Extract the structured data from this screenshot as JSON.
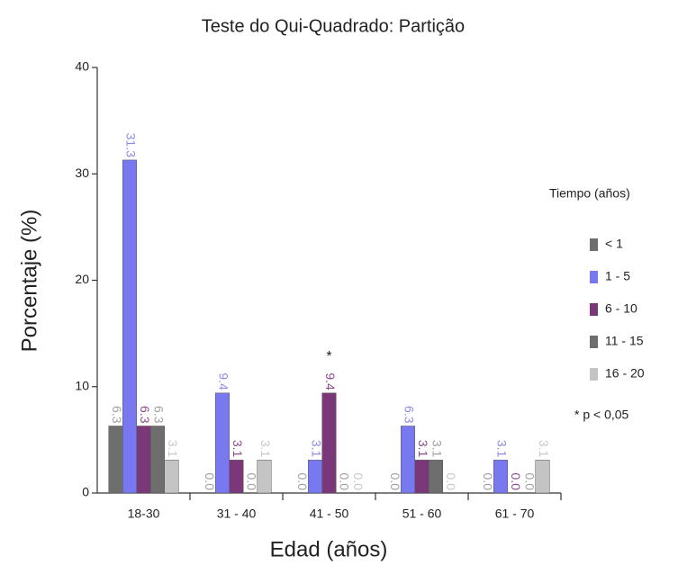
{
  "chart_data": {
    "type": "bar",
    "title": "Teste do Qui-Quadrado: Partição",
    "x_label": "Edad (años)",
    "y_label": "Porcentaje (%)",
    "legend_title": "Tiempo (años)",
    "note": "* p < 0,05",
    "annotations": [
      {
        "text": "*",
        "category": "41 - 50",
        "series": "6 - 10"
      }
    ],
    "categories": [
      "18-30",
      "31 - 40",
      "41 - 50",
      "51 - 60",
      "61 - 70"
    ],
    "ylim": [
      0,
      40
    ],
    "yticks": [
      0,
      10,
      20,
      30,
      40
    ],
    "legend": "right",
    "series": [
      {
        "name": "< 1",
        "color": "#6e6e6e",
        "label_color": "#a0a0a0",
        "values": [
          6.3,
          0.0,
          0.0,
          0.0,
          0.0
        ],
        "value_labels": [
          "6.3",
          "0.0",
          "0.0",
          "0.0",
          "0.0"
        ]
      },
      {
        "name": "1 - 5",
        "color": "#7878f0",
        "label_color": "#8c8ce8",
        "values": [
          31.3,
          9.4,
          3.1,
          6.3,
          3.1
        ],
        "value_labels": [
          "31.3",
          "9.4",
          "3.1",
          "6.3",
          "3.1"
        ]
      },
      {
        "name": "6 - 10",
        "color": "#7a3878",
        "label_color": "#8a4a88",
        "values": [
          6.3,
          3.1,
          9.4,
          3.1,
          0.0
        ],
        "value_labels": [
          "6.3",
          "3.1",
          "9.4",
          "3.1",
          "0.0"
        ]
      },
      {
        "name": "11 - 15",
        "color": "#6e6e6e",
        "label_color": "#a0a0a0",
        "values": [
          6.3,
          0.0,
          0.0,
          3.1,
          0.0
        ],
        "value_labels": [
          "6.3",
          "0.0",
          "0.0",
          "3.1",
          "0.0"
        ]
      },
      {
        "name": "16 - 20",
        "color": "#c4c4c4",
        "label_color": "#c8c8c8",
        "values": [
          3.1,
          3.1,
          0.0,
          0.0,
          3.1
        ],
        "value_labels": [
          "3.1",
          "3.1",
          "0.0",
          "0.0",
          "3.1"
        ]
      }
    ]
  }
}
